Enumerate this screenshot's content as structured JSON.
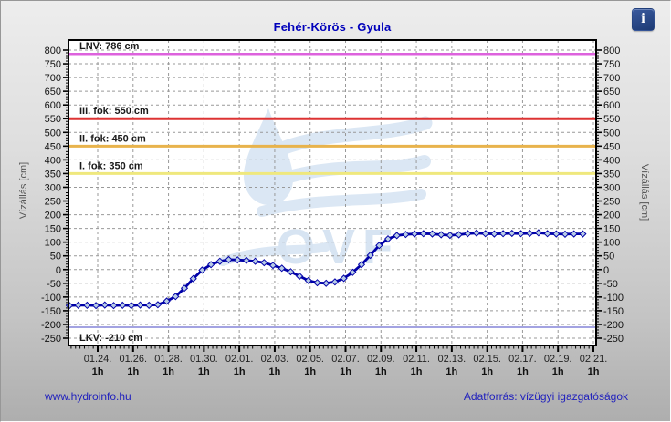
{
  "header": {
    "info_icon": "i"
  },
  "footer": {
    "site_link": "www.hydroinfo.hu",
    "data_source": "Adatforrás: vízügyi igazgatóságok"
  },
  "chart_data": {
    "type": "line",
    "title": "Fehér-Körös - Gyula",
    "watermark": "OVF",
    "y_axis": {
      "label": "Vízállás [cm]",
      "min": -250,
      "max": 800,
      "step": 50,
      "ticks": [
        800,
        750,
        700,
        650,
        600,
        550,
        500,
        450,
        400,
        350,
        300,
        250,
        200,
        150,
        100,
        50,
        0,
        -50,
        -100,
        -150,
        -200,
        -250
      ]
    },
    "x_axis": {
      "tick_spacing_days": 2,
      "labels": [
        {
          "date": "01.24.",
          "freq": "1h"
        },
        {
          "date": "01.26.",
          "freq": "1h"
        },
        {
          "date": "01.28.",
          "freq": "1h"
        },
        {
          "date": "01.30.",
          "freq": "1h"
        },
        {
          "date": "02.01.",
          "freq": "1h"
        },
        {
          "date": "02.03.",
          "freq": "1h"
        },
        {
          "date": "02.05.",
          "freq": "1h"
        },
        {
          "date": "02.07.",
          "freq": "1h"
        },
        {
          "date": "02.09.",
          "freq": "1h"
        },
        {
          "date": "02.11.",
          "freq": "1h"
        },
        {
          "date": "02.13.",
          "freq": "1h"
        },
        {
          "date": "02.15.",
          "freq": "1h"
        },
        {
          "date": "02.17.",
          "freq": "1h"
        },
        {
          "date": "02.19.",
          "freq": "1h"
        },
        {
          "date": "02.21.",
          "freq": "1h"
        }
      ]
    },
    "reference_lines": [
      {
        "id": "LNV",
        "label": "LNV: 786 cm",
        "value": 786,
        "color": "#dd62dd",
        "width": 2.5,
        "label_side": "above"
      },
      {
        "id": "III_fok",
        "label": "III. fok: 550 cm",
        "value": 550,
        "color": "#dd3333",
        "width": 3,
        "label_side": "above"
      },
      {
        "id": "II_fok",
        "label": "II. fok: 450 cm",
        "value": 450,
        "color": "#e8b34c",
        "width": 3,
        "label_side": "above"
      },
      {
        "id": "I_fok",
        "label": "I. fok: 350 cm",
        "value": 350,
        "color": "#efe87d",
        "width": 3,
        "label_side": "above"
      },
      {
        "id": "LKV",
        "label": "LKV: -210 cm",
        "value": -210,
        "color": "#a3a3e2",
        "width": 2,
        "label_side": "below"
      }
    ],
    "series": [
      {
        "name": "vízállás",
        "color": "#0000a8",
        "marker_fill": "#b8cce6",
        "x_unit": "days_from_01_24",
        "points": [
          [
            -1.6,
            -131
          ],
          [
            -1.1,
            -130
          ],
          [
            -0.6,
            -130
          ],
          [
            -0.1,
            -131
          ],
          [
            0.4,
            -129
          ],
          [
            0.9,
            -131
          ],
          [
            1.4,
            -130
          ],
          [
            1.9,
            -131
          ],
          [
            2.4,
            -129
          ],
          [
            2.9,
            -130
          ],
          [
            3.4,
            -128
          ],
          [
            3.9,
            -115
          ],
          [
            4.4,
            -98
          ],
          [
            4.9,
            -68
          ],
          [
            5.4,
            -33
          ],
          [
            5.9,
            -2
          ],
          [
            6.4,
            18
          ],
          [
            6.9,
            30
          ],
          [
            7.4,
            36
          ],
          [
            7.9,
            35
          ],
          [
            8.4,
            33
          ],
          [
            8.9,
            30
          ],
          [
            9.4,
            25
          ],
          [
            9.9,
            15
          ],
          [
            10.4,
            5
          ],
          [
            10.9,
            -8
          ],
          [
            11.4,
            -24
          ],
          [
            11.9,
            -40
          ],
          [
            12.4,
            -48
          ],
          [
            12.9,
            -50
          ],
          [
            13.4,
            -45
          ],
          [
            13.9,
            -32
          ],
          [
            14.4,
            -10
          ],
          [
            14.9,
            18
          ],
          [
            15.4,
            52
          ],
          [
            15.9,
            88
          ],
          [
            16.4,
            112
          ],
          [
            16.9,
            124
          ],
          [
            17.4,
            128
          ],
          [
            17.9,
            130
          ],
          [
            18.4,
            131
          ],
          [
            18.9,
            130
          ],
          [
            19.4,
            127
          ],
          [
            19.9,
            125
          ],
          [
            20.4,
            127
          ],
          [
            20.9,
            131
          ],
          [
            21.4,
            133
          ],
          [
            21.9,
            131
          ],
          [
            22.4,
            130
          ],
          [
            22.9,
            131
          ],
          [
            23.4,
            132
          ],
          [
            23.9,
            131
          ],
          [
            24.4,
            132
          ],
          [
            24.9,
            134
          ],
          [
            25.4,
            131
          ],
          [
            25.9,
            130
          ],
          [
            26.4,
            129
          ],
          [
            26.9,
            130
          ],
          [
            27.4,
            130
          ]
        ]
      }
    ]
  }
}
